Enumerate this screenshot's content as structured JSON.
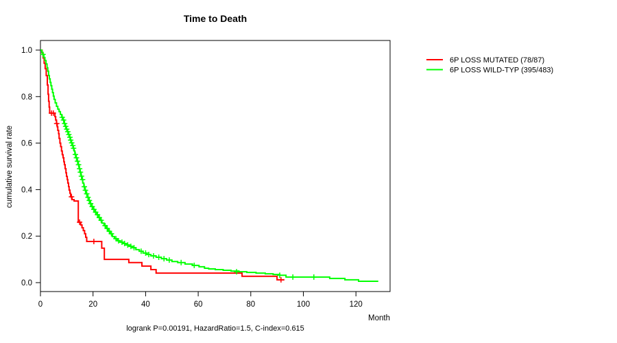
{
  "title": "Time to Death",
  "footer": "logrank P=0.00191, HazardRatio=1.5, C-index=0.615",
  "axes": {
    "x_label": "Month",
    "y_label": "cumulative survival rate",
    "x_ticks": [
      0,
      20,
      40,
      60,
      80,
      100,
      120
    ],
    "y_ticks": [
      "0.0",
      "0.2",
      "0.4",
      "0.6",
      "0.8",
      "1.0"
    ]
  },
  "legend": [
    {
      "label": "6P LOSS MUTATED (78/87)",
      "color": "#ff0000"
    },
    {
      "label": "6P LOSS WILD-TYP (395/483)",
      "color": "#00ff00"
    }
  ],
  "chart_data": {
    "type": "line",
    "subtype": "kaplan-meier-step",
    "title": "Time to Death",
    "xlabel": "Month",
    "ylabel": "cumulative survival rate",
    "xlim": [
      0,
      133
    ],
    "ylim": [
      0,
      1.0
    ],
    "grid": false,
    "legend_position": "right-outside-top",
    "annotation": "logrank P=0.00191, HazardRatio=1.5, C-index=0.615",
    "series": [
      {
        "name": "6P LOSS MUTATED (78/87)",
        "color": "#ff0000",
        "step": true,
        "points": [
          [
            0,
            1.0
          ],
          [
            0.6,
            0.988
          ],
          [
            1.0,
            0.966
          ],
          [
            1.4,
            0.943
          ],
          [
            1.8,
            0.92
          ],
          [
            2.2,
            0.89
          ],
          [
            2.6,
            0.85
          ],
          [
            2.9,
            0.81
          ],
          [
            3.1,
            0.78
          ],
          [
            3.3,
            0.755
          ],
          [
            3.5,
            0.729
          ],
          [
            5.5,
            0.714
          ],
          [
            5.8,
            0.699
          ],
          [
            6.1,
            0.684
          ],
          [
            6.4,
            0.67
          ],
          [
            6.6,
            0.655
          ],
          [
            6.9,
            0.64
          ],
          [
            7.1,
            0.62
          ],
          [
            7.4,
            0.6
          ],
          [
            7.7,
            0.585
          ],
          [
            8.0,
            0.566
          ],
          [
            8.3,
            0.55
          ],
          [
            8.6,
            0.537
          ],
          [
            8.9,
            0.52
          ],
          [
            9.1,
            0.507
          ],
          [
            9.4,
            0.49
          ],
          [
            9.7,
            0.472
          ],
          [
            9.9,
            0.457
          ],
          [
            10.2,
            0.443
          ],
          [
            10.4,
            0.428
          ],
          [
            10.7,
            0.413
          ],
          [
            10.9,
            0.398
          ],
          [
            11.2,
            0.384
          ],
          [
            11.5,
            0.369
          ],
          [
            12.0,
            0.357
          ],
          [
            12.8,
            0.351
          ],
          [
            14.4,
            0.26
          ],
          [
            15.3,
            0.248
          ],
          [
            15.8,
            0.236
          ],
          [
            16.3,
            0.224
          ],
          [
            16.8,
            0.21
          ],
          [
            17.2,
            0.195
          ],
          [
            17.6,
            0.177
          ],
          [
            23.3,
            0.148
          ],
          [
            24.3,
            0.1
          ],
          [
            33.6,
            0.086
          ],
          [
            38.6,
            0.071
          ],
          [
            42.0,
            0.056
          ],
          [
            44.0,
            0.041
          ],
          [
            76.7,
            0.027
          ],
          [
            90.0,
            0.012
          ],
          [
            92.8,
            0.012
          ]
        ],
        "censors": [
          [
            4.2,
            0.729
          ],
          [
            4.9,
            0.729
          ],
          [
            6.2,
            0.684
          ],
          [
            11.8,
            0.369
          ],
          [
            14.9,
            0.26
          ],
          [
            20.3,
            0.177
          ],
          [
            91.5,
            0.012
          ]
        ]
      },
      {
        "name": "6P LOSS WILD-TYP (395/483)",
        "color": "#00ff00",
        "step": true,
        "points": [
          [
            0,
            1.0
          ],
          [
            0.5,
            0.99
          ],
          [
            0.9,
            0.981
          ],
          [
            1.3,
            0.968
          ],
          [
            1.7,
            0.955
          ],
          [
            2.1,
            0.94
          ],
          [
            2.5,
            0.924
          ],
          [
            2.8,
            0.909
          ],
          [
            3.1,
            0.891
          ],
          [
            3.4,
            0.876
          ],
          [
            3.7,
            0.861
          ],
          [
            4.0,
            0.847
          ],
          [
            4.3,
            0.832
          ],
          [
            4.6,
            0.817
          ],
          [
            4.9,
            0.802
          ],
          [
            5.2,
            0.788
          ],
          [
            5.6,
            0.773
          ],
          [
            6.1,
            0.758
          ],
          [
            6.6,
            0.746
          ],
          [
            7.1,
            0.735
          ],
          [
            7.6,
            0.723
          ],
          [
            8.1,
            0.711
          ],
          [
            8.6,
            0.699
          ],
          [
            9.0,
            0.684
          ],
          [
            9.4,
            0.672
          ],
          [
            9.8,
            0.66
          ],
          [
            10.2,
            0.649
          ],
          [
            10.6,
            0.637
          ],
          [
            11.0,
            0.625
          ],
          [
            11.4,
            0.613
          ],
          [
            11.7,
            0.601
          ],
          [
            12.1,
            0.589
          ],
          [
            12.4,
            0.578
          ],
          [
            12.8,
            0.566
          ],
          [
            13.1,
            0.551
          ],
          [
            13.5,
            0.537
          ],
          [
            13.9,
            0.522
          ],
          [
            14.3,
            0.507
          ],
          [
            14.7,
            0.49
          ],
          [
            15.0,
            0.475
          ],
          [
            15.4,
            0.458
          ],
          [
            15.7,
            0.443
          ],
          [
            16.1,
            0.428
          ],
          [
            16.5,
            0.412
          ],
          [
            16.9,
            0.397
          ],
          [
            17.3,
            0.382
          ],
          [
            17.8,
            0.367
          ],
          [
            18.3,
            0.353
          ],
          [
            18.8,
            0.34
          ],
          [
            19.4,
            0.327
          ],
          [
            20.0,
            0.315
          ],
          [
            20.6,
            0.303
          ],
          [
            21.3,
            0.292
          ],
          [
            22.0,
            0.28
          ],
          [
            22.7,
            0.268
          ],
          [
            23.4,
            0.256
          ],
          [
            24.2,
            0.245
          ],
          [
            25.0,
            0.233
          ],
          [
            25.8,
            0.221
          ],
          [
            26.6,
            0.21
          ],
          [
            27.4,
            0.198
          ],
          [
            28.2,
            0.189
          ],
          [
            29.2,
            0.18
          ],
          [
            30.2,
            0.174
          ],
          [
            31.4,
            0.168
          ],
          [
            32.6,
            0.162
          ],
          [
            33.8,
            0.156
          ],
          [
            35.0,
            0.15
          ],
          [
            36.3,
            0.142
          ],
          [
            37.6,
            0.135
          ],
          [
            39.0,
            0.127
          ],
          [
            40.4,
            0.121
          ],
          [
            42.0,
            0.115
          ],
          [
            44.0,
            0.109
          ],
          [
            46.0,
            0.103
          ],
          [
            48.0,
            0.097
          ],
          [
            50.0,
            0.091
          ],
          [
            52.2,
            0.086
          ],
          [
            55.0,
            0.08
          ],
          [
            57.8,
            0.074
          ],
          [
            60.3,
            0.068
          ],
          [
            62.4,
            0.062
          ],
          [
            64.0,
            0.059
          ],
          [
            66.5,
            0.056
          ],
          [
            69.5,
            0.053
          ],
          [
            72.5,
            0.05
          ],
          [
            75.5,
            0.047
          ],
          [
            78.5,
            0.044
          ],
          [
            82.0,
            0.041
          ],
          [
            85.5,
            0.038
          ],
          [
            88.5,
            0.035
          ],
          [
            91.0,
            0.032
          ],
          [
            93.4,
            0.024
          ],
          [
            110.0,
            0.018
          ],
          [
            115.8,
            0.012
          ],
          [
            121.0,
            0.006
          ],
          [
            128.5,
            0.006
          ]
        ],
        "censors": [
          [
            1.0,
            0.981
          ],
          [
            8.3,
            0.711
          ],
          [
            8.8,
            0.699
          ],
          [
            9.2,
            0.684
          ],
          [
            9.6,
            0.672
          ],
          [
            10.0,
            0.66
          ],
          [
            10.4,
            0.649
          ],
          [
            10.8,
            0.637
          ],
          [
            11.2,
            0.625
          ],
          [
            11.5,
            0.613
          ],
          [
            11.9,
            0.601
          ],
          [
            12.3,
            0.589
          ],
          [
            12.6,
            0.578
          ],
          [
            13.3,
            0.551
          ],
          [
            13.7,
            0.537
          ],
          [
            14.1,
            0.522
          ],
          [
            14.5,
            0.507
          ],
          [
            14.9,
            0.49
          ],
          [
            15.2,
            0.475
          ],
          [
            15.6,
            0.458
          ],
          [
            16.0,
            0.443
          ],
          [
            16.7,
            0.412
          ],
          [
            17.1,
            0.397
          ],
          [
            17.6,
            0.382
          ],
          [
            18.1,
            0.367
          ],
          [
            18.6,
            0.353
          ],
          [
            19.1,
            0.34
          ],
          [
            19.7,
            0.327
          ],
          [
            20.3,
            0.315
          ],
          [
            21.0,
            0.303
          ],
          [
            21.7,
            0.292
          ],
          [
            22.4,
            0.28
          ],
          [
            23.1,
            0.268
          ],
          [
            24.6,
            0.245
          ],
          [
            25.4,
            0.233
          ],
          [
            26.2,
            0.221
          ],
          [
            27.0,
            0.21
          ],
          [
            28.7,
            0.189
          ],
          [
            29.7,
            0.18
          ],
          [
            31.0,
            0.174
          ],
          [
            32.0,
            0.168
          ],
          [
            33.2,
            0.162
          ],
          [
            34.4,
            0.156
          ],
          [
            35.6,
            0.15
          ],
          [
            38.3,
            0.135
          ],
          [
            40.0,
            0.127
          ],
          [
            41.2,
            0.121
          ],
          [
            43.0,
            0.115
          ],
          [
            45.0,
            0.109
          ],
          [
            47.0,
            0.103
          ],
          [
            49.0,
            0.097
          ],
          [
            53.5,
            0.086
          ],
          [
            58.5,
            0.074
          ],
          [
            74.6,
            0.047
          ],
          [
            91.0,
            0.032
          ],
          [
            96.0,
            0.024
          ],
          [
            104.0,
            0.024
          ]
        ]
      }
    ]
  }
}
